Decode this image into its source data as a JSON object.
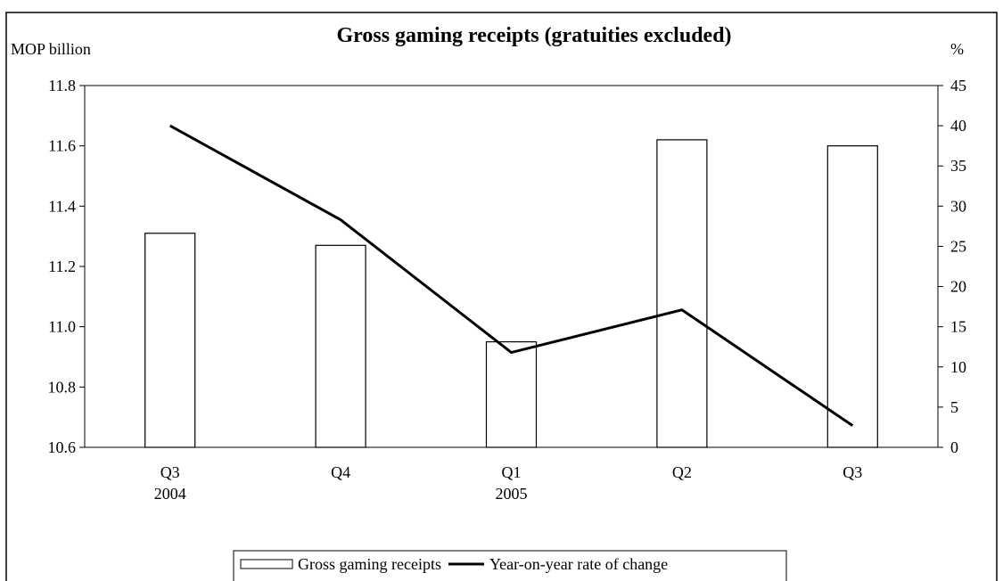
{
  "chart_data": {
    "type": "bar_line",
    "title": "Gross gaming receipts (gratuities excluded)",
    "y_label": "MOP billion",
    "y2_label": "%",
    "categories": [
      "Q3 2004",
      "Q4",
      "Q1 2005",
      "Q2",
      "Q3"
    ],
    "series": [
      {
        "name": "Gross gaming receipts",
        "type": "bar",
        "color": "#ffffff",
        "values": [
          11.31,
          11.27,
          10.95,
          11.62,
          11.6
        ]
      },
      {
        "name": "Year-on-year rate of change",
        "type": "line",
        "axis": "y2",
        "color": "#000000",
        "values": [
          40.0,
          28.3,
          11.8,
          17.1,
          2.7
        ]
      }
    ],
    "ylim": [
      10.6,
      11.8
    ],
    "yticks": [
      {
        "value": 10.6,
        "label": "10.6"
      },
      {
        "value": 10.8,
        "label": "10.8"
      },
      {
        "value": 11.0,
        "label": "11.0"
      },
      {
        "value": 11.2,
        "label": "11.2"
      },
      {
        "value": 11.4,
        "label": "11.4"
      },
      {
        "value": 11.6,
        "label": "11.6"
      },
      {
        "value": 11.8,
        "label": "11.8"
      }
    ],
    "y2lim": [
      0,
      45
    ],
    "y2ticks": [
      0,
      5,
      10,
      15,
      20,
      25,
      30,
      35,
      40,
      45
    ],
    "legend": "bottom"
  }
}
